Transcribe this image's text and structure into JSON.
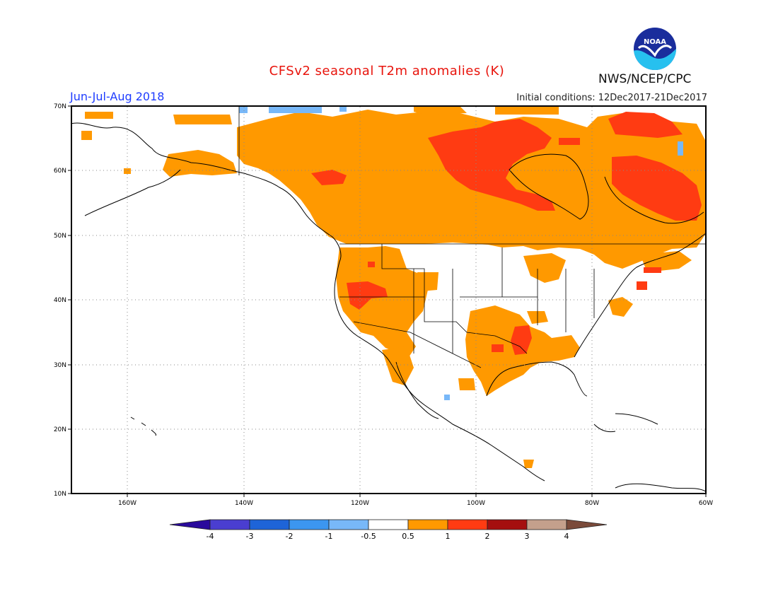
{
  "header": {
    "title": "CFSv2 seasonal T2m anomalies (K)",
    "season": "Jun-Jul-Aug 2018",
    "initial_conditions": "Initial conditions: 12Dec2017-21Dec2017",
    "agency": "NWS/NCEP/CPC",
    "logo_text": "NOAA"
  },
  "map": {
    "lat_labels": [
      "70N",
      "60N",
      "50N",
      "40N",
      "30N",
      "20N",
      "10N"
    ],
    "lon_labels": [
      "160W",
      "140W",
      "120W",
      "100W",
      "80W",
      "60W"
    ]
  },
  "colorbar": {
    "labels": [
      "-4",
      "-3",
      "-2",
      "-1",
      "-0.5",
      "0.5",
      "1",
      "2",
      "3",
      "4"
    ],
    "colors": [
      "#2a0a9c",
      "#4a3ed0",
      "#1e64d8",
      "#3c96f0",
      "#78b8f8",
      "#ffffff",
      "#ff9900",
      "#ff3b12",
      "#a50f0f",
      "#c4a08c",
      "#7a4a3a"
    ]
  }
}
